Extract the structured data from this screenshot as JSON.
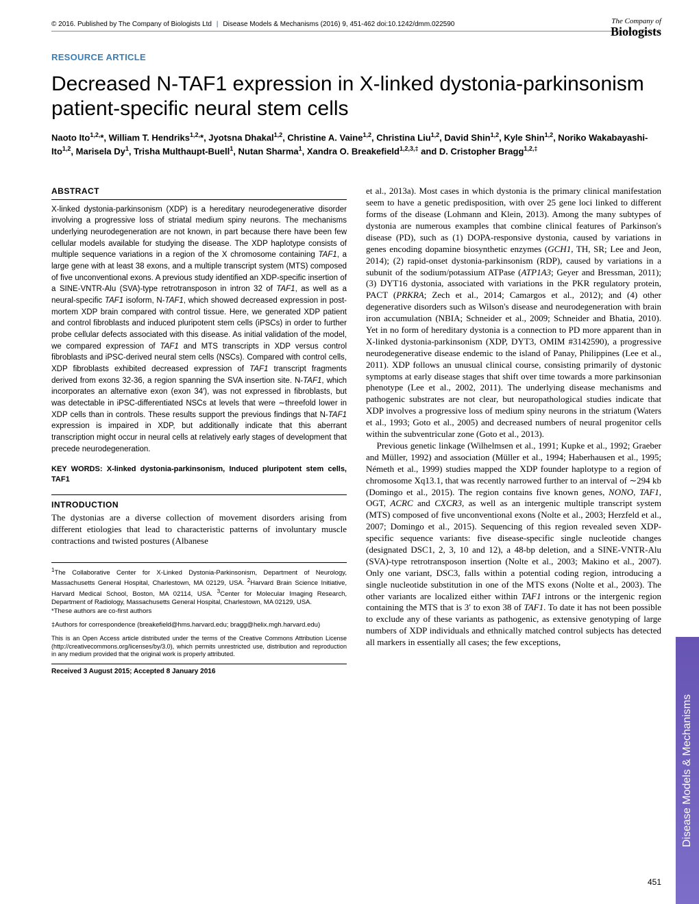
{
  "header": {
    "copyright": "© 2016. Published by The Company of Biologists Ltd",
    "journal": "Disease Models & Mechanisms (2016) 9, 451-462 doi:10.1242/dmm.022590"
  },
  "logo": {
    "top": "The Company of",
    "bottom": "Biologists"
  },
  "article_type": "RESOURCE ARTICLE",
  "title": "Decreased N-TAF1 expression in X-linked dystonia-parkinsonism patient-specific neural stem cells",
  "authors_html": "Naoto Ito<sup>1,2,</sup>*, William T. Hendriks<sup>1,2,</sup>*, Jyotsna Dhakal<sup>1,2</sup>, Christine A. Vaine<sup>1,2</sup>, Christina Liu<sup>1,2</sup>, David Shin<sup>1,2</sup>, Kyle Shin<sup>1,2</sup>, Noriko Wakabayashi-Ito<sup>1,2</sup>, Marisela Dy<sup>1</sup>, Trisha Multhaupt-Buell<sup>1</sup>, Nutan Sharma<sup>1</sup>, Xandra O. Breakefield<sup>1,2,3,‡</sup> and D. Cristopher Bragg<sup>1,2,‡</sup>",
  "abstract": {
    "heading": "ABSTRACT",
    "text": "X-linked dystonia-parkinsonism (XDP) is a hereditary neurodegenerative disorder involving a progressive loss of striatal medium spiny neurons. The mechanisms underlying neurodegeneration are not known, in part because there have been few cellular models available for studying the disease. The XDP haplotype consists of multiple sequence variations in a region of the X chromosome containing TAF1, a large gene with at least 38 exons, and a multiple transcript system (MTS) composed of five unconventional exons. A previous study identified an XDP-specific insertion of a SINE-VNTR-Alu (SVA)-type retrotransposon in intron 32 of TAF1, as well as a neural-specific TAF1 isoform, N-TAF1, which showed decreased expression in post-mortem XDP brain compared with control tissue. Here, we generated XDP patient and control fibroblasts and induced pluripotent stem cells (iPSCs) in order to further probe cellular defects associated with this disease. As initial validation of the model, we compared expression of TAF1 and MTS transcripts in XDP versus control fibroblasts and iPSC-derived neural stem cells (NSCs). Compared with control cells, XDP fibroblasts exhibited decreased expression of TAF1 transcript fragments derived from exons 32-36, a region spanning the SVA insertion site. N-TAF1, which incorporates an alternative exon (exon 34′), was not expressed in fibroblasts, but was detectable in iPSC-differentiated NSCs at levels that were ∼threefold lower in XDP cells than in controls. These results support the previous findings that N-TAF1 expression is impaired in XDP, but additionally indicate that this aberrant transcription might occur in neural cells at relatively early stages of development that precede neurodegeneration."
  },
  "keywords": {
    "label": "KEY WORDS:",
    "text": "X-linked dystonia-parkinsonism, Induced pluripotent stem cells, TAF1"
  },
  "introduction": {
    "heading": "INTRODUCTION",
    "para1": "The dystonias are a diverse collection of movement disorders arising from different etiologies that lead to characteristic patterns of involuntary muscle contractions and twisted postures (Albanese"
  },
  "body_right": {
    "para1": "et al., 2013a). Most cases in which dystonia is the primary clinical manifestation seem to have a genetic predisposition, with over 25 gene loci linked to different forms of the disease (Lohmann and Klein, 2013). Among the many subtypes of dystonia are numerous examples that combine clinical features of Parkinson's disease (PD), such as (1) DOPA-responsive dystonia, caused by variations in genes encoding dopamine biosynthetic enzymes (GCH1, TH, SR; Lee and Jeon, 2014); (2) rapid-onset dystonia-parkinsonism (RDP), caused by variations in a subunit of the sodium/potassium ATPase (ATP1A3; Geyer and Bressman, 2011); (3) DYT16 dystonia, associated with variations in the PKR regulatory protein, PACT (PRKRA; Zech et al., 2014; Camargos et al., 2012); and (4) other degenerative disorders such as Wilson's disease and neurodegeneration with brain iron accumulation (NBIA; Schneider et al., 2009; Schneider and Bhatia, 2010). Yet in no form of hereditary dystonia is a connection to PD more apparent than in X-linked dystonia-parkinsonism (XDP, DYT3, OMIM #3142590), a progressive neurodegenerative disease endemic to the island of Panay, Philippines (Lee et al., 2011). XDP follows an unusual clinical course, consisting primarily of dystonic symptoms at early disease stages that shift over time towards a more parkinsonian phenotype (Lee et al., 2002, 2011). The underlying disease mechanisms and pathogenic substrates are not clear, but neuropathological studies indicate that XDP involves a progressive loss of medium spiny neurons in the striatum (Waters et al., 1993; Goto et al., 2005) and decreased numbers of neural progenitor cells within the subventricular zone (Goto et al., 2013).",
    "para2": "Previous genetic linkage (Wilhelmsen et al., 1991; Kupke et al., 1992; Graeber and Müller, 1992) and association (Müller et al., 1994; Haberhausen et al., 1995; Németh et al., 1999) studies mapped the XDP founder haplotype to a region of chromosome Xq13.1, that was recently narrowed further to an interval of ∼294 kb (Domingo et al., 2015). The region contains five known genes, NONO, TAF1, OGT, ACRC and CXCR3, as well as an intergenic multiple transcript system (MTS) composed of five unconventional exons (Nolte et al., 2003; Herzfeld et al., 2007; Domingo et al., 2015). Sequencing of this region revealed seven XDP-specific sequence variants: five disease-specific single nucleotide changes (designated DSC1, 2, 3, 10 and 12), a 48-bp deletion, and a SINE-VNTR-Alu (SVA)-type retrotransposon insertion (Nolte et al., 2003; Makino et al., 2007). Only one variant, DSC3, falls within a potential coding region, introducing a single nucleotide substitution in one of the MTS exons (Nolte et al., 2003). The other variants are localized either within TAF1 introns or the intergenic region containing the MTS that is 3′ to exon 38 of TAF1. To date it has not been possible to exclude any of these variants as pathogenic, as extensive genotyping of large numbers of XDP individuals and ethnically matched control subjects has detected all markers in essentially all cases; the few exceptions,"
  },
  "affiliations": {
    "a1": "The Collaborative Center for X-Linked Dystonia-Parkinsonism, Department of Neurology, Massachusetts General Hospital, Charlestown, MA 02129, USA.",
    "a2": "Harvard Brain Science Initiative, Harvard Medical School, Boston, MA 02114, USA.",
    "a3": "Center for Molecular Imaging Research, Department of Radiology, Massachusetts General Hospital, Charlestown, MA 02129, USA.",
    "cofirst": "*These authors are co-first authors",
    "corr": "‡Authors for correspondence (breakefield@hms.harvard.edu; bragg@helix.mgh.harvard.edu)",
    "license": "This is an Open Access article distributed under the terms of the Creative Commons Attribution License (http://creativecommons.org/licenses/by/3.0), which permits unrestricted use, distribution and reproduction in any medium provided that the original work is properly attributed.",
    "received": "Received 3 August 2015; Accepted 8 January 2016"
  },
  "side_tab": "Disease Models & Mechanisms",
  "page_number": "451",
  "colors": {
    "accent_blue": "#3b7cb5",
    "side_tab_bg": "#6a5acd",
    "text": "#000000"
  }
}
